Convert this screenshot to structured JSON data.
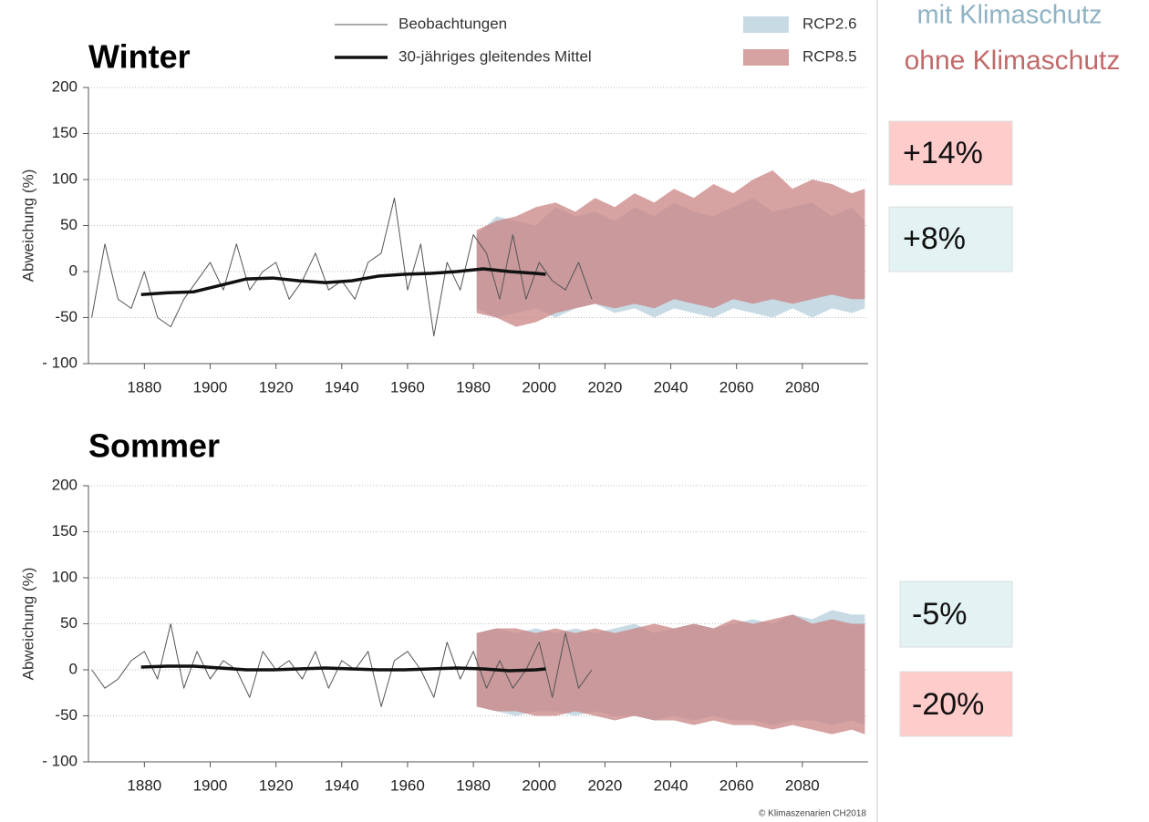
{
  "chart_data": [
    {
      "type": "line",
      "title": "Winter",
      "ylabel": "Abweichung (%)",
      "xlim": [
        1863,
        2100
      ],
      "ylim": [
        -100,
        200
      ],
      "xticks": [
        1880,
        1900,
        1920,
        1940,
        1960,
        1980,
        2000,
        2020,
        2040,
        2060,
        2080
      ],
      "yticks": [
        {
          "value": -100,
          "label": "- 100"
        },
        -50,
        0,
        50,
        100,
        150,
        200
      ],
      "grid": true,
      "series": [
        {
          "name": "RCP2.6",
          "type": "area",
          "color": "#b5cfdc",
          "x": [
            1981,
            1987,
            1993,
            1999,
            2005,
            2011,
            2017,
            2023,
            2029,
            2035,
            2041,
            2047,
            2053,
            2059,
            2065,
            2071,
            2077,
            2083,
            2089,
            2095,
            2099
          ],
          "lower": [
            -40,
            -50,
            -45,
            -40,
            -50,
            -40,
            -35,
            -45,
            -40,
            -50,
            -40,
            -45,
            -50,
            -40,
            -45,
            -50,
            -40,
            -50,
            -40,
            -45,
            -40
          ],
          "upper": [
            40,
            60,
            55,
            50,
            70,
            60,
            65,
            55,
            70,
            60,
            75,
            65,
            60,
            70,
            80,
            65,
            70,
            75,
            60,
            70,
            55
          ]
        },
        {
          "name": "RCP8.5",
          "type": "area",
          "color": "#c98383",
          "x": [
            1981,
            1987,
            1993,
            1999,
            2005,
            2011,
            2017,
            2023,
            2029,
            2035,
            2041,
            2047,
            2053,
            2059,
            2065,
            2071,
            2077,
            2083,
            2089,
            2095,
            2099
          ],
          "lower": [
            -45,
            -50,
            -60,
            -55,
            -45,
            -40,
            -35,
            -40,
            -35,
            -40,
            -30,
            -35,
            -40,
            -30,
            -35,
            -30,
            -35,
            -30,
            -25,
            -30,
            -30
          ],
          "upper": [
            45,
            55,
            60,
            70,
            75,
            65,
            80,
            70,
            85,
            75,
            90,
            80,
            95,
            85,
            100,
            110,
            90,
            100,
            95,
            85,
            90
          ]
        },
        {
          "name": "Beobachtungen",
          "type": "line",
          "color": "#555555",
          "line_width": 1,
          "x": [
            1864,
            1868,
            1872,
            1876,
            1880,
            1884,
            1888,
            1892,
            1896,
            1900,
            1904,
            1908,
            1912,
            1916,
            1920,
            1924,
            1928,
            1932,
            1936,
            1940,
            1944,
            1948,
            1952,
            1956,
            1960,
            1964,
            1968,
            1972,
            1976,
            1980,
            1984,
            1988,
            1992,
            1996,
            2000,
            2004,
            2008,
            2012,
            2016
          ],
          "values": [
            -50,
            30,
            -30,
            -40,
            0,
            -50,
            -60,
            -30,
            -10,
            10,
            -20,
            30,
            -20,
            0,
            10,
            -30,
            -10,
            20,
            -20,
            -10,
            -30,
            10,
            20,
            80,
            -20,
            30,
            -70,
            10,
            -20,
            40,
            20,
            -30,
            40,
            -30,
            10,
            -10,
            -20,
            10,
            -30
          ]
        },
        {
          "name": "30-jähriges gleitendes Mittel",
          "type": "line",
          "color": "#111111",
          "line_width": 3.5,
          "x": [
            1879,
            1887,
            1895,
            1903,
            1911,
            1919,
            1927,
            1935,
            1943,
            1951,
            1959,
            1967,
            1975,
            1983,
            1991,
            1999,
            2002
          ],
          "values": [
            -25,
            -23,
            -22,
            -15,
            -8,
            -7,
            -10,
            -12,
            -10,
            -5,
            -3,
            -2,
            0,
            3,
            0,
            -2,
            -3
          ]
        }
      ]
    },
    {
      "type": "line",
      "title": "Sommer",
      "ylabel": "Abweichung (%)",
      "xlim": [
        1863,
        2100
      ],
      "ylim": [
        -100,
        200
      ],
      "xticks": [
        1880,
        1900,
        1920,
        1940,
        1960,
        1980,
        2000,
        2020,
        2040,
        2060,
        2080
      ],
      "yticks": [
        {
          "value": -100,
          "label": "- 100"
        },
        -50,
        0,
        50,
        100,
        150,
        200
      ],
      "grid": true,
      "series": [
        {
          "type": "area",
          "color": "#b5cfdc",
          "x": [
            1981,
            1987,
            1993,
            1999,
            2005,
            2011,
            2017,
            2023,
            2029,
            2035,
            2041,
            2047,
            2053,
            2059,
            2065,
            2071,
            2077,
            2083,
            2089,
            2095,
            2099
          ],
          "lower": [
            -40,
            -45,
            -50,
            -45,
            -45,
            -50,
            -45,
            -50,
            -50,
            -55,
            -50,
            -55,
            -50,
            -55,
            -55,
            -60,
            -55,
            -55,
            -60,
            -55,
            -60
          ],
          "upper": [
            40,
            45,
            40,
            45,
            40,
            45,
            40,
            45,
            50,
            40,
            45,
            50,
            45,
            50,
            55,
            50,
            60,
            55,
            65,
            60,
            60
          ]
        },
        {
          "type": "area",
          "color": "#c98383",
          "x": [
            1981,
            1987,
            1993,
            1999,
            2005,
            2011,
            2017,
            2023,
            2029,
            2035,
            2041,
            2047,
            2053,
            2059,
            2065,
            2071,
            2077,
            2083,
            2089,
            2095,
            2099
          ],
          "lower": [
            -40,
            -45,
            -45,
            -50,
            -50,
            -45,
            -50,
            -55,
            -50,
            -55,
            -55,
            -60,
            -55,
            -60,
            -60,
            -65,
            -60,
            -65,
            -70,
            -65,
            -70
          ],
          "upper": [
            40,
            45,
            45,
            40,
            45,
            40,
            45,
            40,
            45,
            50,
            45,
            50,
            45,
            55,
            50,
            55,
            60,
            50,
            55,
            50,
            50
          ]
        },
        {
          "type": "line",
          "color": "#555555",
          "line_width": 1,
          "x": [
            1864,
            1868,
            1872,
            1876,
            1880,
            1884,
            1888,
            1892,
            1896,
            1900,
            1904,
            1908,
            1912,
            1916,
            1920,
            1924,
            1928,
            1932,
            1936,
            1940,
            1944,
            1948,
            1952,
            1956,
            1960,
            1964,
            1968,
            1972,
            1976,
            1980,
            1984,
            1988,
            1992,
            1996,
            2000,
            2004,
            2008,
            2012,
            2016
          ],
          "values": [
            0,
            -20,
            -10,
            10,
            20,
            -10,
            50,
            -20,
            20,
            -10,
            10,
            0,
            -30,
            20,
            0,
            10,
            -10,
            20,
            -20,
            10,
            0,
            20,
            -40,
            10,
            20,
            0,
            -30,
            30,
            -10,
            20,
            -20,
            10,
            -20,
            0,
            30,
            -30,
            40,
            -20,
            0
          ]
        },
        {
          "type": "line",
          "color": "#111111",
          "line_width": 3.5,
          "x": [
            1879,
            1887,
            1895,
            1903,
            1911,
            1919,
            1927,
            1935,
            1943,
            1951,
            1959,
            1967,
            1975,
            1983,
            1991,
            1999,
            2002
          ],
          "values": [
            3,
            4,
            4,
            2,
            0,
            0,
            1,
            2,
            1,
            0,
            0,
            1,
            2,
            1,
            -1,
            0,
            1
          ]
        }
      ]
    }
  ],
  "side_labels": [
    "mit Klimaschutz",
    "ohne Klimaschutz"
  ],
  "change_boxes": [
    "+14%",
    "+8%",
    "-5%",
    "-20%"
  ],
  "credit": "© Klimaszenarien CH2018"
}
